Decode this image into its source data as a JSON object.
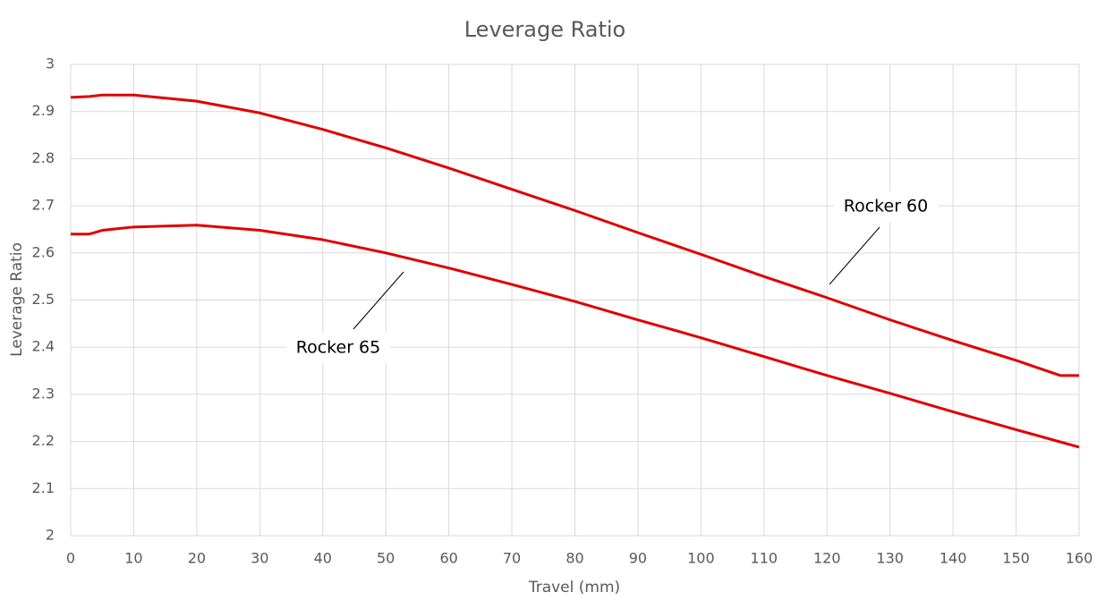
{
  "chart_data": {
    "type": "line",
    "title": "Leverage Ratio",
    "x_label": "Travel (mm)",
    "y_label": "Leverage Ratio",
    "x": [
      0,
      3,
      5,
      10,
      20,
      30,
      40,
      50,
      60,
      70,
      80,
      90,
      100,
      110,
      120,
      130,
      140,
      150,
      157,
      160
    ],
    "series": [
      {
        "name": "Rocker 60",
        "color": "#e00000",
        "values": [
          2.93,
          2.932,
          2.935,
          2.935,
          2.922,
          2.897,
          2.862,
          2.823,
          2.78,
          2.735,
          2.69,
          2.643,
          2.597,
          2.55,
          2.505,
          2.458,
          2.414,
          2.372,
          2.34,
          2.34
        ]
      },
      {
        "name": "Rocker 65",
        "color": "#e00000",
        "values": [
          2.64,
          2.64,
          2.648,
          2.655,
          2.659,
          2.648,
          2.628,
          2.6,
          2.568,
          2.533,
          2.497,
          2.458,
          2.42,
          2.38,
          2.34,
          2.302,
          2.263,
          2.225,
          2.199,
          2.188
        ]
      }
    ],
    "xlim": [
      0,
      160
    ],
    "xticks": [
      0,
      10,
      20,
      30,
      40,
      50,
      60,
      70,
      80,
      90,
      100,
      110,
      120,
      130,
      140,
      150,
      160
    ],
    "ylim": [
      2,
      3
    ],
    "yticks": [
      2,
      2.1,
      2.2,
      2.3,
      2.4,
      2.5,
      2.6,
      2.7,
      2.8,
      2.9,
      3
    ],
    "grid": true
  }
}
